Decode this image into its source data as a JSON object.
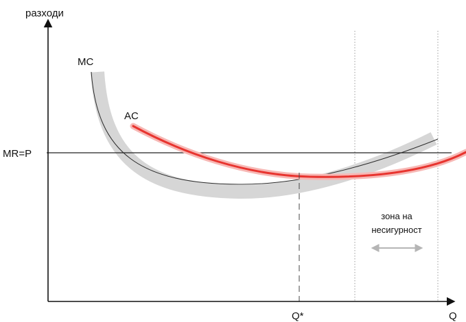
{
  "axes": {
    "y_label": "разходи",
    "x_label": "Q",
    "color": "#111111"
  },
  "labels": {
    "mc": "MC",
    "ac": "AC",
    "mr_p": "MR=P",
    "q_star": "Q*",
    "uncertainty_zone": [
      "зона на",
      "несигурност"
    ]
  },
  "colors": {
    "mc_band": "#d6d6d6",
    "mc_line": "#2b2b2b",
    "ac_line": "#e8342f",
    "ac_glow": "#f7b8b5",
    "mr_line": "#222222",
    "guide_line": "#9a9a9a",
    "uncertainty_arrow": "#b5b5b5"
  }
}
